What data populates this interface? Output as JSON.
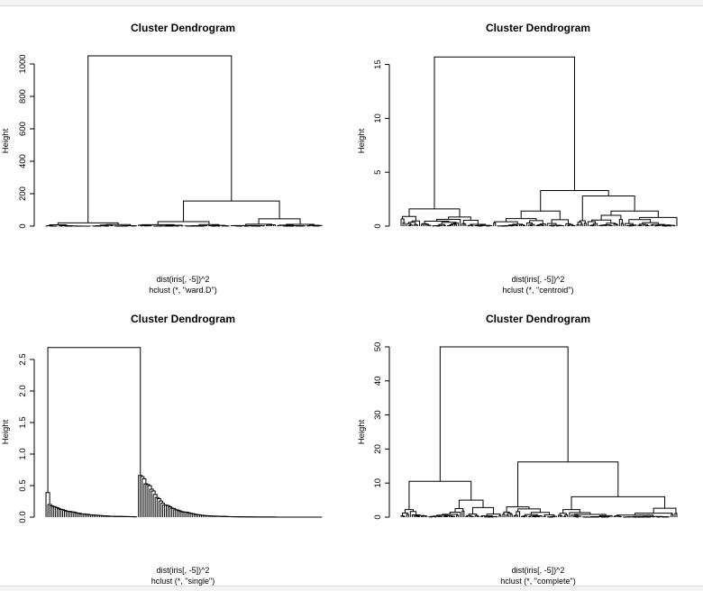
{
  "chart_data": [
    {
      "type": "dendrogram",
      "title": "Cluster Dendrogram",
      "ylabel": "Height",
      "xlabel": "dist(iris[, -5])^2",
      "sub": "hclust (*, \"ward.D\")",
      "yticks": [
        0,
        200,
        400,
        600,
        800,
        1000
      ],
      "ylim": [
        0,
        1050
      ],
      "max_height": 1050,
      "major_merges": [
        1050,
        155,
        45,
        28,
        20
      ],
      "leaf_count": 150
    },
    {
      "type": "dendrogram",
      "title": "Cluster Dendrogram",
      "ylabel": "Height",
      "xlabel": "dist(iris[, -5])^2",
      "sub": "hclust (*, \"centroid\")",
      "yticks": [
        0,
        5,
        10,
        15
      ],
      "ylim": [
        0,
        15.8
      ],
      "max_height": 15.7,
      "major_merges": [
        15.7,
        3.3,
        2.8,
        1.6,
        1.4,
        1.0,
        0.8
      ],
      "leaf_count": 150
    },
    {
      "type": "dendrogram",
      "title": "Cluster Dendrogram",
      "ylabel": "Height",
      "xlabel": "dist(iris[, -5])^2",
      "sub": "hclust (*, \"single\")",
      "yticks": [
        "0.0",
        "0.5",
        "1.0",
        "1.5",
        "2.0",
        "2.5"
      ],
      "ylim": [
        0,
        2.7
      ],
      "max_height": 2.69,
      "major_merges": [
        2.69,
        0.66,
        0.54,
        0.39,
        0.34,
        0.28
      ],
      "leaf_count": 150
    },
    {
      "type": "dendrogram",
      "title": "Cluster Dendrogram",
      "ylabel": "Height",
      "xlabel": "dist(iris[, -5])^2",
      "sub": "hclust (*, \"complete\")",
      "yticks": [
        0,
        10,
        20,
        30,
        40,
        50
      ],
      "ylim": [
        0,
        50
      ],
      "max_height": 50,
      "major_merges": [
        50,
        16.2,
        10.5,
        6.0,
        5.0,
        2.8
      ],
      "leaf_count": 150
    }
  ]
}
